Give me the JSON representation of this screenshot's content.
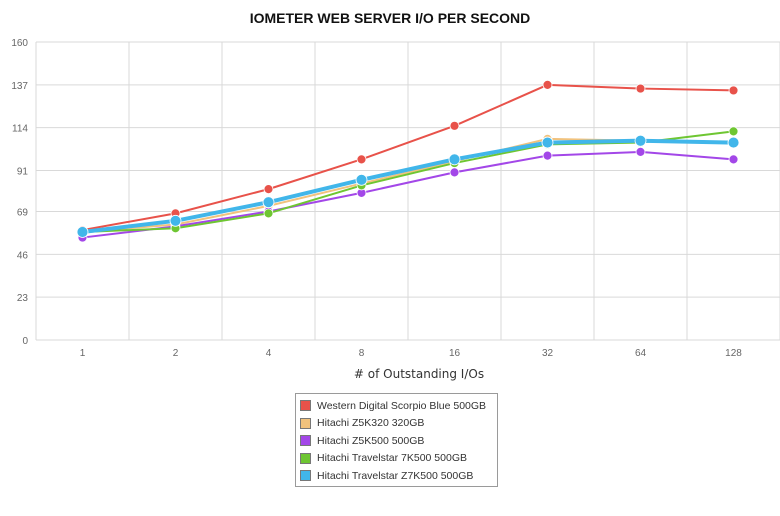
{
  "chart_data": {
    "type": "line",
    "title": "IOMETER WEB SERVER I/O PER SECOND",
    "xlabel": "# of Outstanding I/Os",
    "ylabel": "",
    "categories": [
      "1",
      "2",
      "4",
      "8",
      "16",
      "32",
      "64",
      "128"
    ],
    "yticks": [
      "0",
      "23",
      "46",
      "69",
      "91",
      "114",
      "137",
      "160"
    ],
    "ylim": [
      0,
      160
    ],
    "grid": true,
    "legend_position": "bottom-center",
    "series": [
      {
        "name": "Western Digital Scorpio Blue 500GB",
        "color": "#e8524a",
        "values": [
          59,
          68,
          81,
          97,
          115,
          137,
          135,
          134
        ]
      },
      {
        "name": "Hitachi Z5K320 320GB",
        "color": "#f1c27d",
        "values": [
          58,
          62,
          72,
          84,
          96,
          108,
          107,
          106
        ]
      },
      {
        "name": "Hitachi Z5K500 500GB",
        "color": "#a347e8",
        "values": [
          55,
          61,
          69,
          79,
          90,
          99,
          101,
          97
        ]
      },
      {
        "name": "Hitachi Travelstar 7K500 500GB",
        "color": "#6ec632",
        "values": [
          58,
          60,
          68,
          83,
          95,
          105,
          106,
          112
        ]
      },
      {
        "name": "Hitachi Travelstar Z7K500 500GB",
        "color": "#41b6ea",
        "values": [
          58,
          64,
          74,
          86,
          97,
          106,
          107,
          106
        ]
      }
    ]
  }
}
